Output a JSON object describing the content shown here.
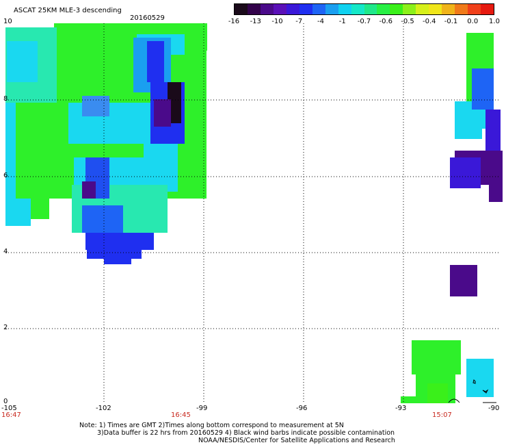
{
  "header": {
    "title": "ASCAT 25KM MLE-3 descending",
    "date": "20160529"
  },
  "colorbar": {
    "colors": [
      "#1a0a1a",
      "#32024a",
      "#4a0a8a",
      "#5a10b8",
      "#3a18d8",
      "#1f2ff0",
      "#1e64f5",
      "#1a9ff0",
      "#10d2f0",
      "#15e8c8",
      "#1fe88a",
      "#28f045",
      "#3af01a",
      "#8cf01a",
      "#d6f01a",
      "#f0e61a",
      "#f0b41a",
      "#f07a1a",
      "#f0401a",
      "#e61a10"
    ],
    "labels": [
      "-16",
      "-13",
      "-10",
      "-7",
      "-4",
      "-1",
      "-0.7",
      "-0.6",
      "-0.5",
      "-0.4",
      "-0.1",
      "0.0",
      "1.0"
    ]
  },
  "axes": {
    "x_labels": [
      "-105",
      "-102",
      "-99",
      "-96",
      "-93",
      "-90"
    ],
    "y_labels": [
      "10",
      "8",
      "6",
      "4",
      "2",
      "0"
    ],
    "times": [
      "16:47",
      "16:45",
      "15:07"
    ]
  },
  "notes": {
    "line1": "Note: 1) Times are GMT 2)Times along bottom correspond to measurement at 5N",
    "line2": "3)Data buffer is 22 hrs from 20160529 4) Black wind barbs indicate possible contamination",
    "line3": "NOAA/NESDIS/Center for Satellite Applications and Research"
  }
}
